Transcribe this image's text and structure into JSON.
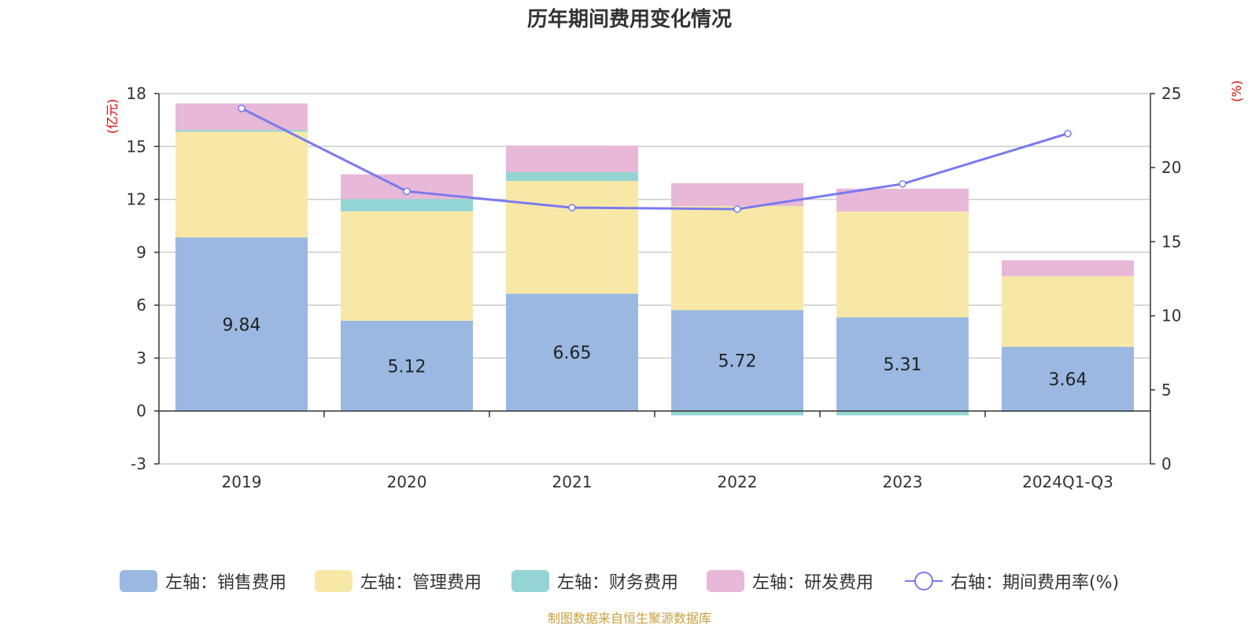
{
  "chart_data": {
    "type": "bar",
    "title": "历年期间费用变化情况",
    "categories": [
      "2019",
      "2020",
      "2021",
      "2022",
      "2023",
      "2024Q1-Q3"
    ],
    "y_left": {
      "unit_label": "(亿元)",
      "range": [
        -3,
        18
      ],
      "ticks": [
        -3,
        0,
        3,
        6,
        9,
        12,
        15,
        18
      ]
    },
    "y_right": {
      "unit_label": "(%)",
      "range": [
        0,
        25
      ],
      "ticks": [
        0,
        5,
        10,
        15,
        20,
        25
      ]
    },
    "grid": true,
    "legend_position": "bottom",
    "series": [
      {
        "name": "左轴：销售费用",
        "type": "bar",
        "axis": "left",
        "color": "#9ab8e2",
        "values": [
          9.84,
          5.12,
          6.65,
          5.72,
          5.31,
          3.64
        ],
        "data_labels": [
          "9.84",
          "5.12",
          "6.65",
          "5.72",
          "5.31",
          "3.64"
        ]
      },
      {
        "name": "左轴：管理费用",
        "type": "bar",
        "axis": "left",
        "color": "#f8e8a8",
        "values": [
          6.0,
          6.2,
          6.4,
          5.9,
          6.0,
          4.0
        ]
      },
      {
        "name": "左轴：财务费用",
        "type": "bar",
        "axis": "left",
        "color": "#94d4d4",
        "values": [
          0.1,
          0.7,
          0.5,
          -0.25,
          -0.25,
          -0.05
        ]
      },
      {
        "name": "左轴：研发费用",
        "type": "bar",
        "axis": "left",
        "color": "#e8b8d8",
        "values": [
          1.5,
          1.4,
          1.5,
          1.3,
          1.3,
          0.9
        ]
      },
      {
        "name": "右轴：期间费用率(%)",
        "type": "line",
        "axis": "right",
        "color": "#7a7aee",
        "values": [
          24.0,
          18.4,
          17.3,
          17.2,
          18.9,
          22.3
        ]
      }
    ],
    "source": "制图数据来自恒生聚源数据库"
  }
}
